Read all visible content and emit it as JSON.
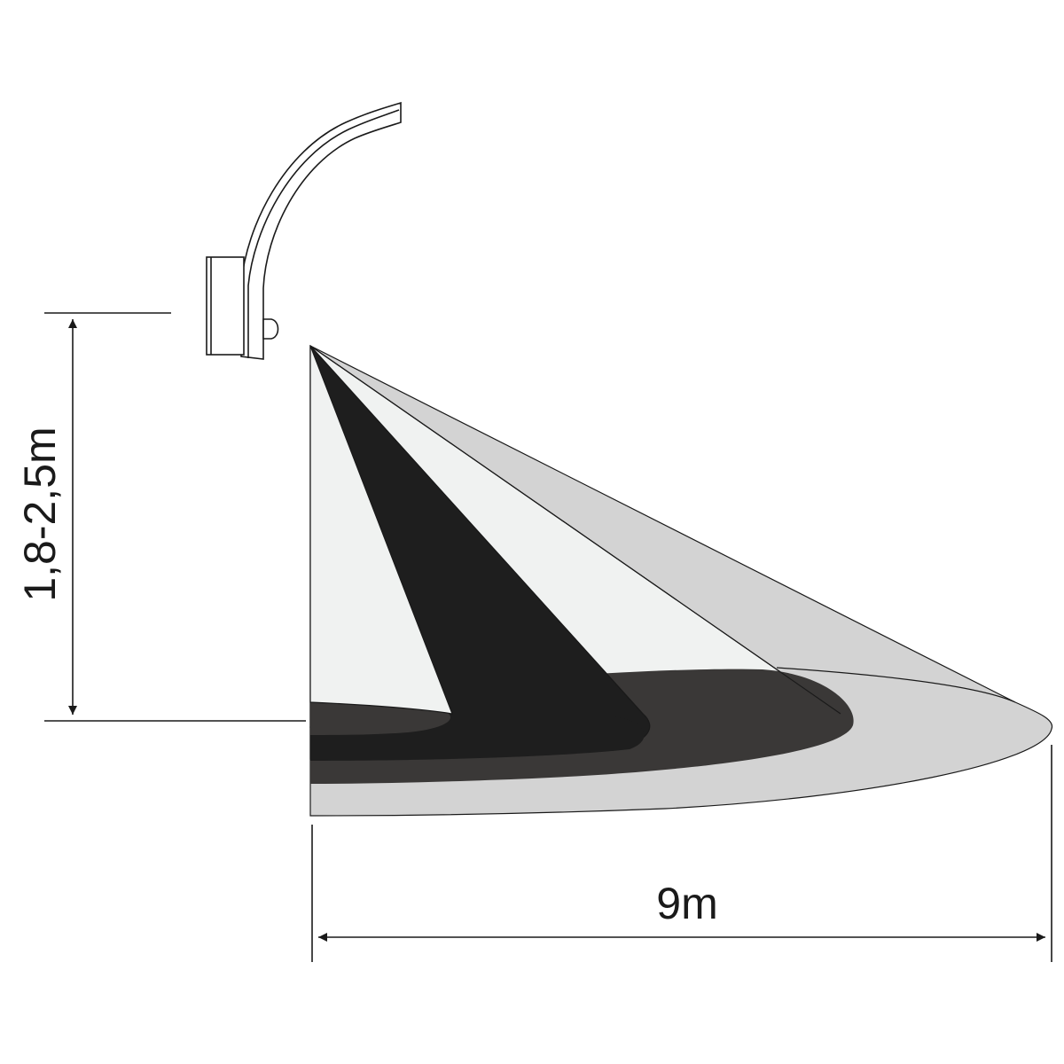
{
  "diagram": {
    "height_label": "1,8-2,5m",
    "width_label": "9m"
  },
  "colors": {
    "line": "#1a1a1a",
    "lamp_fill": "#ffffff",
    "zone_far": "#d3d3d3",
    "zone_mid_light": "#f0f2f1",
    "zone_near_dark": "#1e1e1e",
    "ground_dark": "#3a3837"
  }
}
